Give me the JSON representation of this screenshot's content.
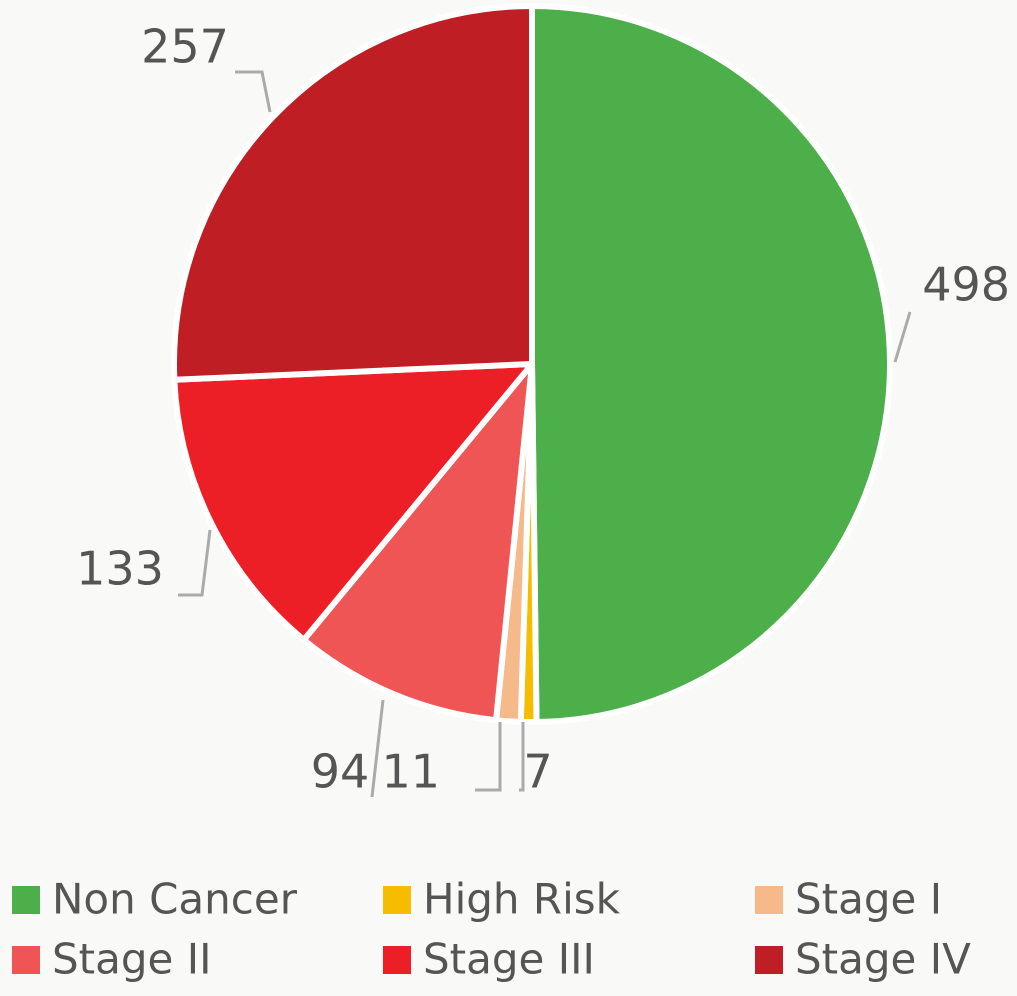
{
  "chart_data": {
    "type": "pie",
    "categories": [
      "Non Cancer",
      "High Risk",
      "Stage I",
      "Stage II",
      "Stage III",
      "Stage IV"
    ],
    "values": [
      498,
      7,
      11,
      94,
      133,
      257
    ],
    "colors": [
      "#4caf4a",
      "#f5bc00",
      "#f5b98a",
      "#f05555",
      "#ec1f26",
      "#be1e24"
    ],
    "legend": "bottom"
  }
}
